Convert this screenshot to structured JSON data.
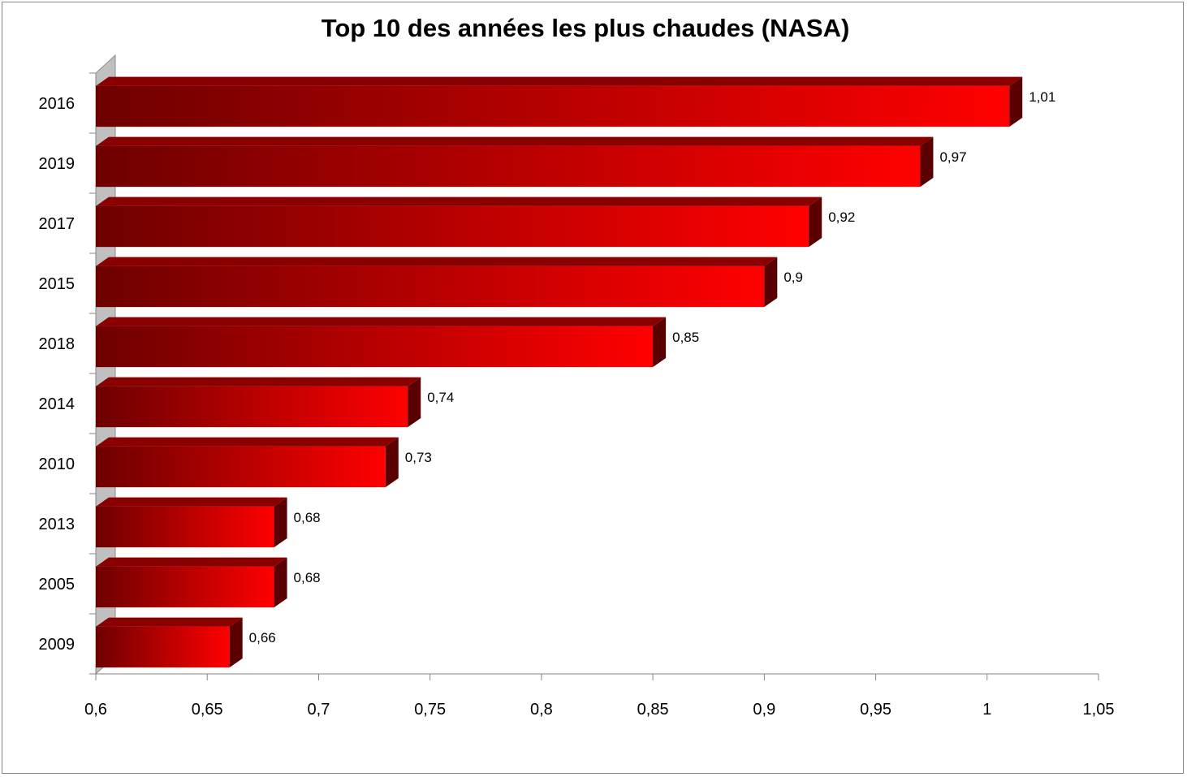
{
  "chart_data": {
    "type": "bar",
    "orientation": "horizontal",
    "title": "Top 10 des années les plus chaudes (NASA)",
    "categories": [
      "2016",
      "2019",
      "2017",
      "2015",
      "2018",
      "2014",
      "2010",
      "2013",
      "2005",
      "2009"
    ],
    "values": [
      1.01,
      0.97,
      0.92,
      0.9,
      0.85,
      0.74,
      0.73,
      0.68,
      0.68,
      0.66
    ],
    "data_labels": [
      "1,01",
      "0,97",
      "0,92",
      "0,9",
      "0,85",
      "0,74",
      "0,73",
      "0,68",
      "0,68",
      "0,66"
    ],
    "xlim": [
      0.6,
      1.05
    ],
    "x_ticks": [
      "0,6",
      "0,65",
      "0,7",
      "0,75",
      "0,8",
      "0,85",
      "0,9",
      "0,95",
      "1",
      "1,05"
    ],
    "xlabel": "",
    "ylabel": "",
    "grid": false,
    "legend": "none",
    "style": "3d",
    "colors": {
      "bar_start": "#6e0000",
      "bar_end": "#ff0000",
      "bar_top": "#8a0000",
      "bar_side": "#5a0000",
      "wall": "#c0c0c0"
    }
  }
}
